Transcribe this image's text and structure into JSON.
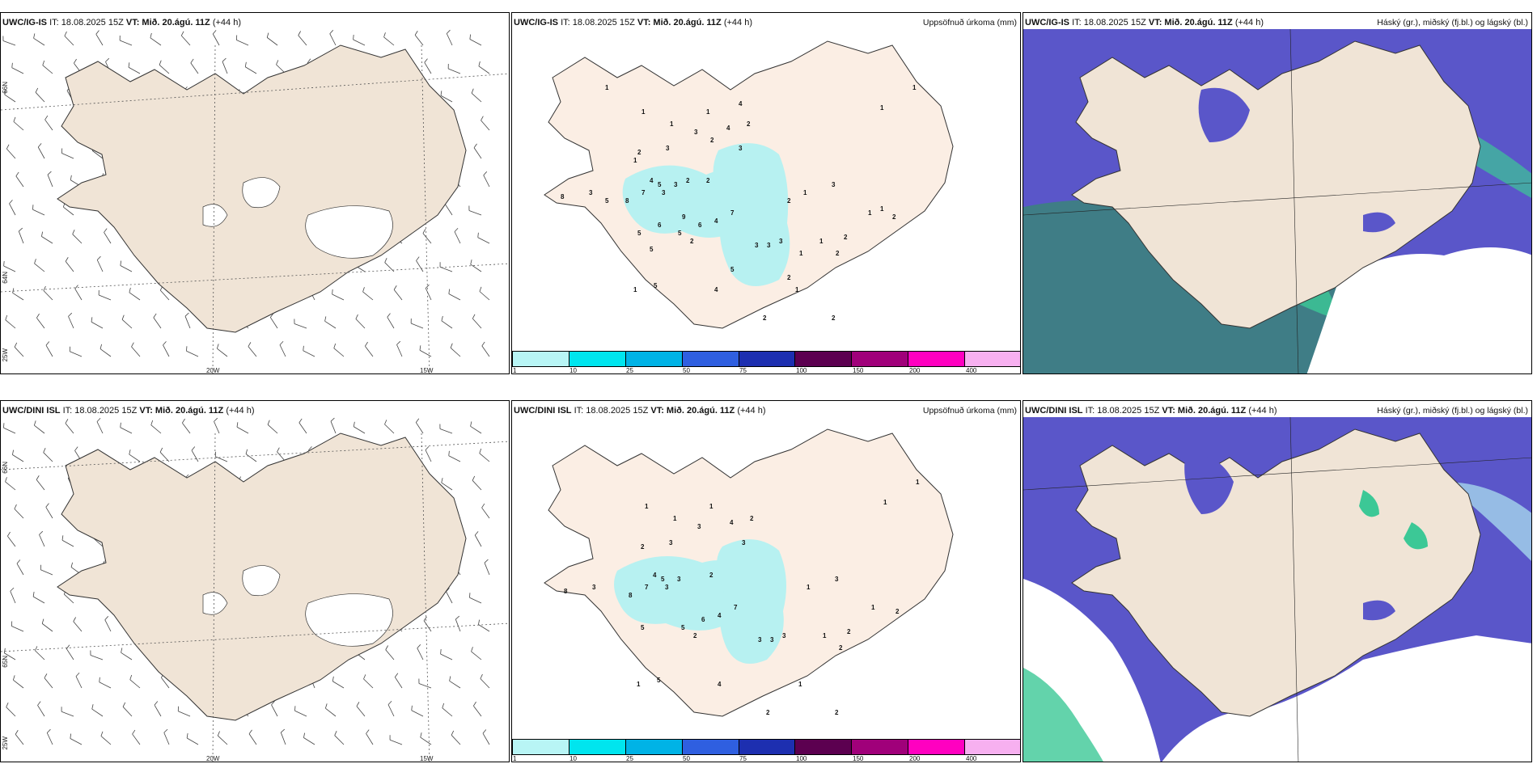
{
  "panels": {
    "top_left": {
      "model": "UWC/IG-IS",
      "it": "IT: 18.08.2025 15Z",
      "vt": "VT: Mið. 20.ágú. 11Z",
      "lead": "(+44 h)",
      "right_title": ""
    },
    "top_mid": {
      "model": "UWC/IG-IS",
      "it": "IT: 18.08.2025 15Z",
      "vt": "VT: Mið. 20.ágú. 11Z",
      "lead": "(+44 h)",
      "right_title": "Uppsöfnuð úrkoma (mm)"
    },
    "top_right": {
      "model": "UWC/IG-IS",
      "it": "IT: 18.08.2025 15Z",
      "vt": "VT: Mið. 20.ágú. 11Z",
      "lead": "(+44 h)",
      "right_title": "Háský (gr.), miðský (fj.bl.) og lágský (bl.)"
    },
    "bot_left": {
      "model": "UWC/DINI ISL",
      "it": "IT: 18.08.2025 15Z",
      "vt": "VT: Mið. 20.ágú. 11Z",
      "lead": "(+44 h)",
      "right_title": ""
    },
    "bot_mid": {
      "model": "UWC/DINI ISL",
      "it": "IT: 18.08.2025 15Z",
      "vt": "VT: Mið. 20.ágú. 11Z",
      "lead": "(+44 h)",
      "right_title": "Uppsöfnuð úrkoma (mm)"
    },
    "bot_right": {
      "model": "UWC/DINI ISL",
      "it": "IT: 18.08.2025 15Z",
      "vt": "VT: Mið. 20.ágú. 11Z",
      "lead": "(+44 h)",
      "right_title": "Háský (gr.), miðský (fj.bl.) og lágský (bl.)"
    }
  },
  "axes": {
    "lat_66": "66N",
    "lat_64": "64N",
    "lat_65": "65N",
    "lon_25": "25W",
    "lon_20": "20W",
    "lon_15": "15W"
  },
  "colorbar": {
    "labels": [
      "1",
      "10",
      "25",
      "50",
      "75",
      "100",
      "150",
      "200",
      "400"
    ],
    "colors": [
      "#b8f5f5",
      "#00e5ee",
      "#00b3e6",
      "#2f5fe0",
      "#1d2fb0",
      "#5c0050",
      "#a0007a",
      "#ff00c0",
      "#f7b0f0"
    ]
  },
  "colors": {
    "land": "#f0e4d6",
    "land_precip": "#fbeee4",
    "precip_light": "#b7f1f1",
    "cloud_low": "#5a56c9",
    "cloud_mid": "#9cc8e8",
    "cloud_high": "#3cc896",
    "sea_dark": "#3f7d86"
  }
}
